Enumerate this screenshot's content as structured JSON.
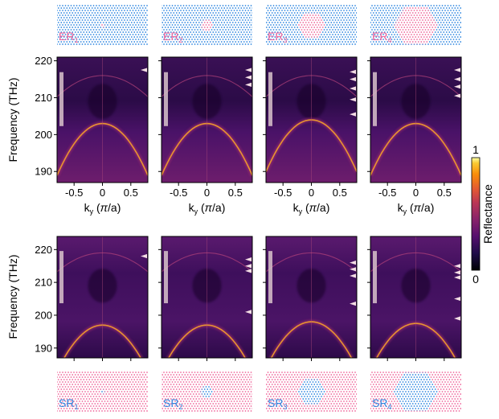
{
  "chart_data": {
    "type": "heatmap",
    "layout": "2 rows x 4 columns of band-structure reflectance maps",
    "colorbar": {
      "label": "Reflectance",
      "ticks": [
        "1",
        "0"
      ],
      "min": 0,
      "max": 1,
      "colormap": "inferno"
    },
    "rows": [
      {
        "id": "ER",
        "ylabel": "Frequency (THz)",
        "xlabel": "k",
        "xlabel_sub": "y",
        "xlabel_unit": " (",
        "xlabel_pi": "π",
        "xlabel_tail": "/a)",
        "ylim": [
          187,
          221
        ],
        "xlim": [
          -0.8,
          0.8
        ],
        "yticks": [
          "220",
          "210",
          "200",
          "190"
        ],
        "xticks": [
          "-0.5",
          "0",
          "0.5"
        ],
        "panels": [
          {
            "label": "ER",
            "sub": "1",
            "region_scale": 0.08,
            "apex": 203,
            "markers": [
              217.5
            ]
          },
          {
            "label": "ER",
            "sub": "2",
            "region_scale": 0.25,
            "apex": 203,
            "markers": [
              217.5,
              215.5,
              213.5
            ]
          },
          {
            "label": "ER",
            "sub": "3",
            "region_scale": 0.55,
            "apex": 204,
            "markers": [
              217,
              215,
              212.5,
              209.5,
              205.5
            ]
          },
          {
            "label": "ER",
            "sub": "4",
            "region_scale": 0.85,
            "apex": 203,
            "markers": [
              217.5,
              215,
              213,
              210.5
            ]
          }
        ]
      },
      {
        "id": "SR",
        "ylabel": "Frequency (THz)",
        "ylim": [
          187,
          224
        ],
        "xlim": [
          -0.8,
          0.8
        ],
        "yticks": [
          "220",
          "210",
          "200",
          "190"
        ],
        "panels": [
          {
            "label": "SR",
            "sub": "1",
            "region_scale": 0.08,
            "apex": 197,
            "markers": [
              218
            ]
          },
          {
            "label": "SR",
            "sub": "2",
            "region_scale": 0.25,
            "apex": 197,
            "markers": [
              217,
              215,
              213.5,
              201
            ]
          },
          {
            "label": "SR",
            "sub": "3",
            "region_scale": 0.55,
            "apex": 198,
            "markers": [
              216,
              214,
              212,
              203.5
            ]
          },
          {
            "label": "SR",
            "sub": "4",
            "region_scale": 0.85,
            "apex": 197.5,
            "markers": [
              215,
              213,
              211.5,
              205,
              199
            ]
          }
        ]
      }
    ],
    "colors": {
      "pink": "#f0679c",
      "blue": "#2f87e0",
      "label_pink": "#f0679c",
      "label_blue": "#2f87e0",
      "marker": "#f4dde4",
      "side_bar": "#d9c3cb"
    }
  }
}
